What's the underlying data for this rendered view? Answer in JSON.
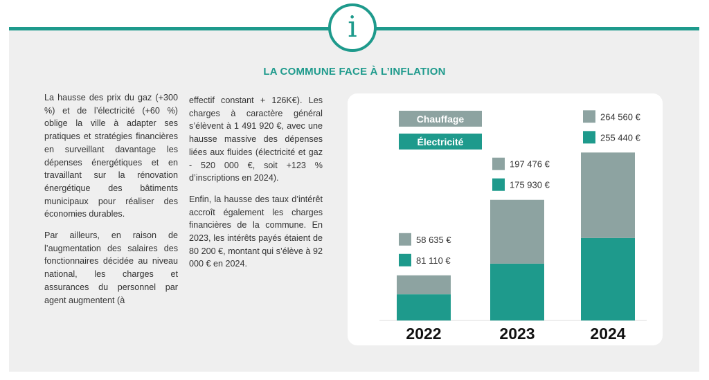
{
  "header": {
    "icon": "info-icon",
    "icon_glyph": "i",
    "title": "LA COMMUNE FACE À L’INFLATION"
  },
  "colors": {
    "accent": "#1e9a8c",
    "chauffage": "#8da3a1",
    "electricite": "#1e9a8c"
  },
  "text": {
    "col1_p1": "La hausse des prix du gaz (+300 %) et de l’électricité (+60 %) oblige la ville à adapter ses pratiques et stratégies financières en surveillant davantage les dépenses énergétiques et en travaillant sur la rénovation énergétique des bâtiments municipaux pour réaliser des économies durables.",
    "col1_p2": "Par ailleurs, en raison de l’augmentation des salaires des fonctionnaires décidée au niveau national, les charges et assurances du personnel par agent augmentent (à",
    "col2_p1": "effectif constant + 126K€). Les charges à caractère général s’élèvent à 1 491 920 €, avec une hausse massive des dépenses liées aux fluides (électricité et gaz - 520 000 €, soit +123 % d’inscriptions en 2024).",
    "col2_p2": "Enfin, la hausse des taux d’intérêt accroît également les charges financières de la commune. En 2023, les intérêts payés étaient de 80 200 €, montant qui s’élève à 92 000 € en 2024."
  },
  "chart_data": {
    "type": "bar",
    "stacked": true,
    "categories": [
      "2022",
      "2023",
      "2024"
    ],
    "series": [
      {
        "name": "Électricité",
        "values": [
          81110,
          175930,
          255440
        ],
        "labels": [
          "81 110 €",
          "175 930 €",
          "255 440 €"
        ]
      },
      {
        "name": "Chauffage",
        "values": [
          58635,
          197476,
          264560
        ],
        "labels": [
          "58 635 €",
          "197 476 €",
          "264 560 €"
        ]
      }
    ],
    "legend": [
      "Chauffage",
      "Électricité"
    ],
    "legend_placement": "top-left",
    "ylim": [
      0,
      540000
    ],
    "grid": false
  }
}
